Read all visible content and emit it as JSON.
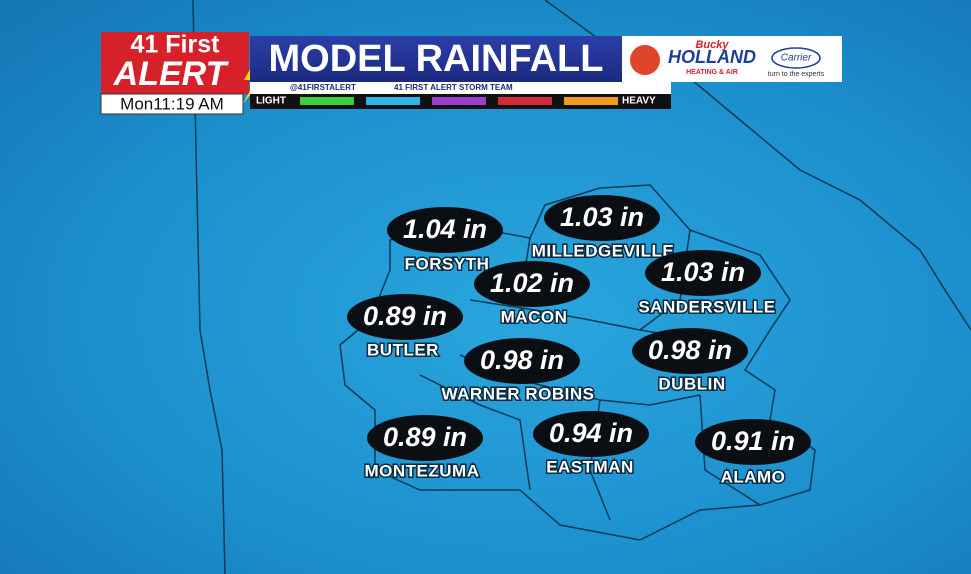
{
  "header": {
    "brand_top": "41 First",
    "brand_bottom": "ALERT",
    "timestamp": "Mon11:19 AM",
    "title": "MODEL RAINFALL",
    "twitter": "@41FIRSTALERT",
    "facebook": "41 FIRST ALERT STORM TEAM",
    "sponsor": {
      "script": "Bucky",
      "name": "HOLLAND",
      "tagline": "HEATING & AIR",
      "partner": "Carrier",
      "partner_tagline": "turn to the experts"
    }
  },
  "legend": {
    "low": "LIGHT",
    "high": "HEAVY"
  },
  "cities": [
    {
      "name": "FORSYTH",
      "rainfall": "1.04 in"
    },
    {
      "name": "MILLEDGEVILLE",
      "rainfall": "1.03 in"
    },
    {
      "name": "MACON",
      "rainfall": "1.02 in"
    },
    {
      "name": "SANDERSVILLE",
      "rainfall": "1.03 in"
    },
    {
      "name": "BUTLER",
      "rainfall": "0.89 in"
    },
    {
      "name": "WARNER ROBINS",
      "rainfall": "0.98 in"
    },
    {
      "name": "DUBLIN",
      "rainfall": "0.98 in"
    },
    {
      "name": "MONTEZUMA",
      "rainfall": "0.89 in"
    },
    {
      "name": "EASTMAN",
      "rainfall": "0.94 in"
    },
    {
      "name": "ALAMO",
      "rainfall": "0.91 in"
    }
  ]
}
